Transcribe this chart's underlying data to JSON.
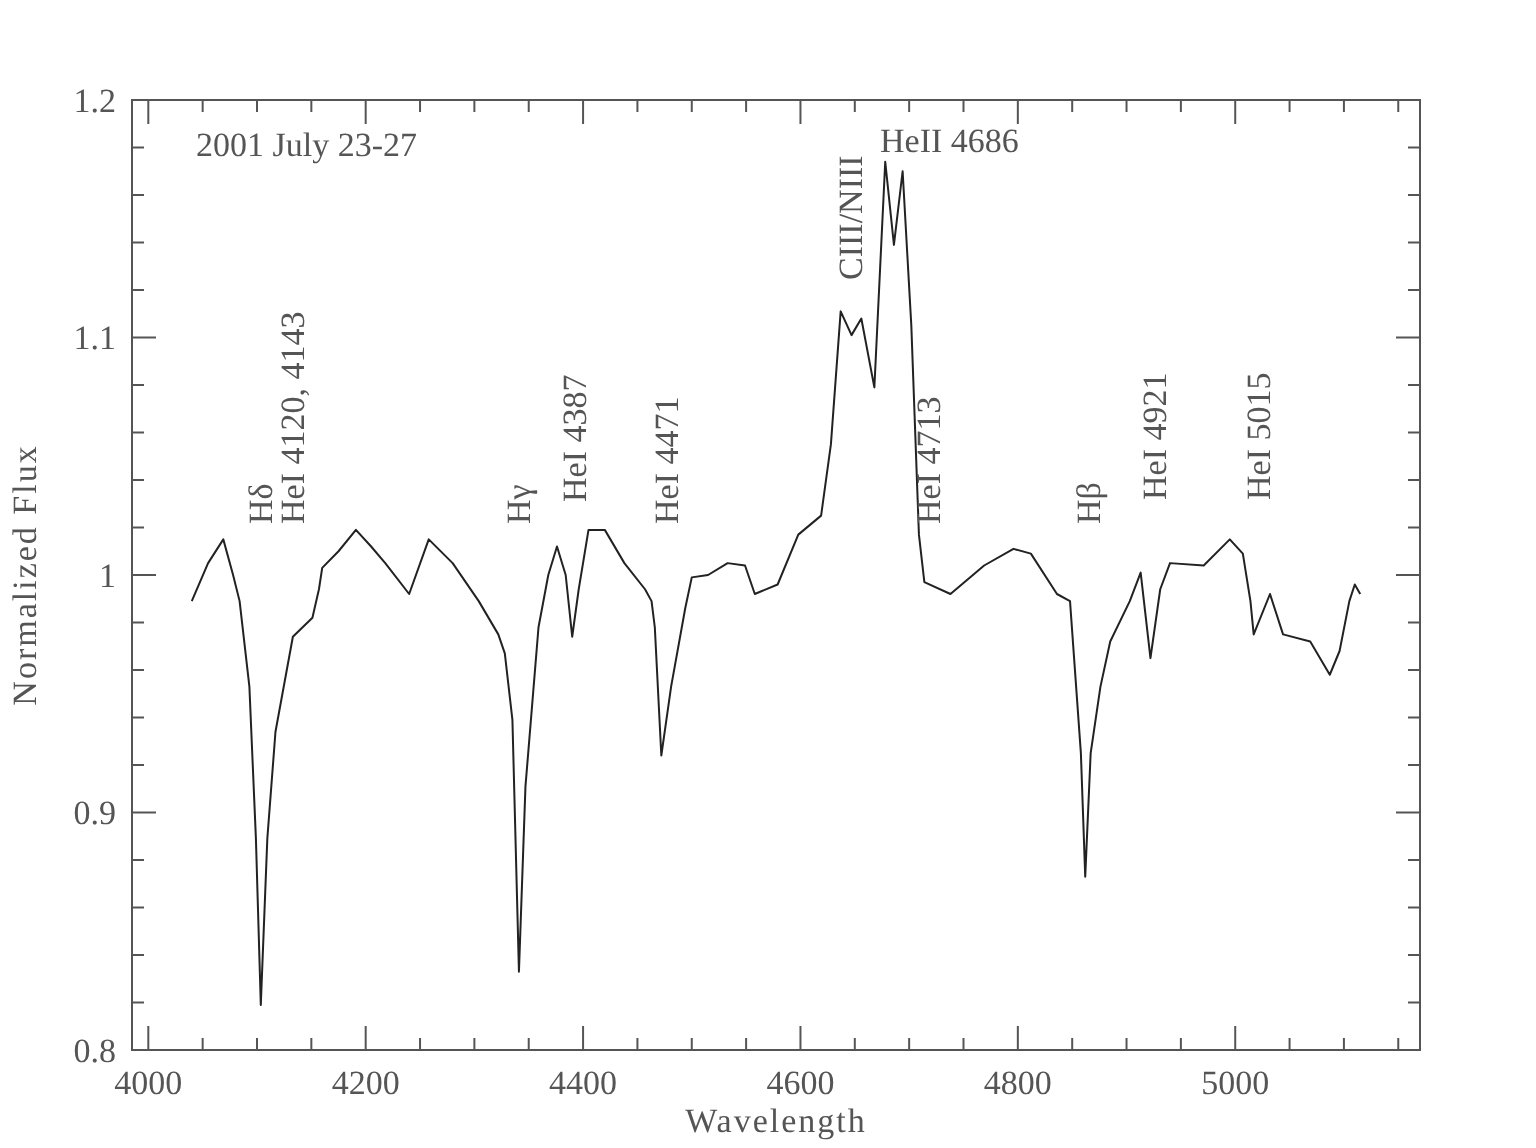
{
  "chart_data": {
    "type": "line",
    "xlabel": "Wavelength",
    "ylabel": "Normalized Flux",
    "xlim": [
      3985,
      5170
    ],
    "ylim": [
      0.8,
      1.2
    ],
    "xticks": [
      4000,
      {
        "value": 4050,
        "label": null
      },
      {
        "value": 4100,
        "label": null
      },
      {
        "value": 4150,
        "label": null
      },
      4200,
      {
        "value": 4250,
        "label": null
      },
      {
        "value": 4300,
        "label": null
      },
      {
        "value": 4350,
        "label": null
      },
      4400,
      {
        "value": 4450,
        "label": null
      },
      {
        "value": 4500,
        "label": null
      },
      {
        "value": 4550,
        "label": null
      },
      4600,
      {
        "value": 4650,
        "label": null
      },
      {
        "value": 4700,
        "label": null
      },
      {
        "value": 4750,
        "label": null
      },
      4800,
      {
        "value": 4850,
        "label": null
      },
      {
        "value": 4900,
        "label": null
      },
      {
        "value": 4950,
        "label": null
      },
      5000,
      {
        "value": 5050,
        "label": null
      },
      {
        "value": 5100,
        "label": null
      },
      {
        "value": 5150,
        "label": null
      }
    ],
    "yticks": [
      0.8,
      {
        "value": 0.82,
        "label": null
      },
      {
        "value": 0.84,
        "label": null
      },
      {
        "value": 0.86,
        "label": null
      },
      {
        "value": 0.88,
        "label": null
      },
      0.9,
      {
        "value": 0.92,
        "label": null
      },
      {
        "value": 0.94,
        "label": null
      },
      {
        "value": 0.96,
        "label": null
      },
      {
        "value": 0.98,
        "label": null
      },
      {
        "value": 1,
        "label": "1"
      },
      {
        "value": 1.02,
        "label": null
      },
      {
        "value": 1.04,
        "label": null
      },
      {
        "value": 1.06,
        "label": null
      },
      {
        "value": 1.08,
        "label": null
      },
      1.1,
      {
        "value": 1.12,
        "label": null
      },
      {
        "value": 1.14,
        "label": null
      },
      {
        "value": 1.16,
        "label": null
      },
      {
        "value": 1.18,
        "label": null
      },
      1.2
    ],
    "grid": false,
    "marker": "none",
    "line_style": "solid",
    "series": [
      {
        "color": "#222222",
        "x": [
          4040,
          4055,
          4069,
          4078,
          4084,
          4093,
          4099,
          4103.5,
          4109.5,
          4117,
          4133,
          4151,
          4157,
          4160,
          4175,
          4191,
          4205,
          4218,
          4240,
          4258,
          4280,
          4304,
          4322,
          4328,
          4335,
          4341,
          4347,
          4359,
          4368,
          4376,
          4384,
          4390,
          4396,
          4405,
          4420,
          4438,
          4457,
          4463,
          4466,
          4472,
          4481,
          4494,
          4500,
          4515,
          4533,
          4549,
          4558,
          4579,
          4598,
          4619,
          4628,
          4637,
          4647,
          4656,
          4668,
          4678,
          4686,
          4694,
          4702,
          4709,
          4714,
          4738,
          4769,
          4796,
          4812,
          4836,
          4848,
          4858,
          4862,
          4867,
          4876,
          4885,
          4903,
          4913,
          4922,
          4931,
          4940,
          4971,
          4995,
          5007,
          5014,
          5017,
          5032,
          5044,
          5069,
          5087,
          5096,
          5105,
          5110,
          5115
        ],
        "values": [
          0.989,
          1.005,
          1.015,
          1.0,
          0.989,
          0.953,
          0.889,
          0.819,
          0.889,
          0.934,
          0.974,
          0.982,
          0.994,
          1.003,
          1.01,
          1.019,
          1.012,
          1.005,
          0.992,
          1.015,
          1.005,
          0.989,
          0.975,
          0.967,
          0.939,
          0.833,
          0.911,
          0.978,
          1.0,
          1.012,
          1.0,
          0.974,
          0.994,
          1.019,
          1.019,
          1.005,
          0.994,
          0.989,
          0.978,
          0.924,
          0.953,
          0.986,
          0.999,
          1.0,
          1.005,
          1.004,
          0.992,
          0.996,
          1.017,
          1.025,
          1.055,
          1.111,
          1.101,
          1.108,
          1.079,
          1.174,
          1.139,
          1.17,
          1.105,
          1.017,
          0.997,
          0.992,
          1.004,
          1.011,
          1.009,
          0.992,
          0.989,
          0.925,
          0.873,
          0.925,
          0.953,
          0.972,
          0.989,
          1.001,
          0.965,
          0.994,
          1.005,
          1.004,
          1.015,
          1.009,
          0.989,
          0.975,
          0.992,
          0.975,
          0.972,
          0.958,
          0.968,
          0.989,
          0.996,
          0.992
        ]
      }
    ],
    "annotations": [
      "2001 July 23-27",
      "Hδ",
      "HeI 4120, 4143",
      "Hγ",
      "HeI 4387",
      "HeI 4471",
      "CIII/NIII",
      "HeII 4686",
      "HeI 4713",
      "Hβ",
      "HeI 4921",
      "HeI 5015"
    ]
  }
}
